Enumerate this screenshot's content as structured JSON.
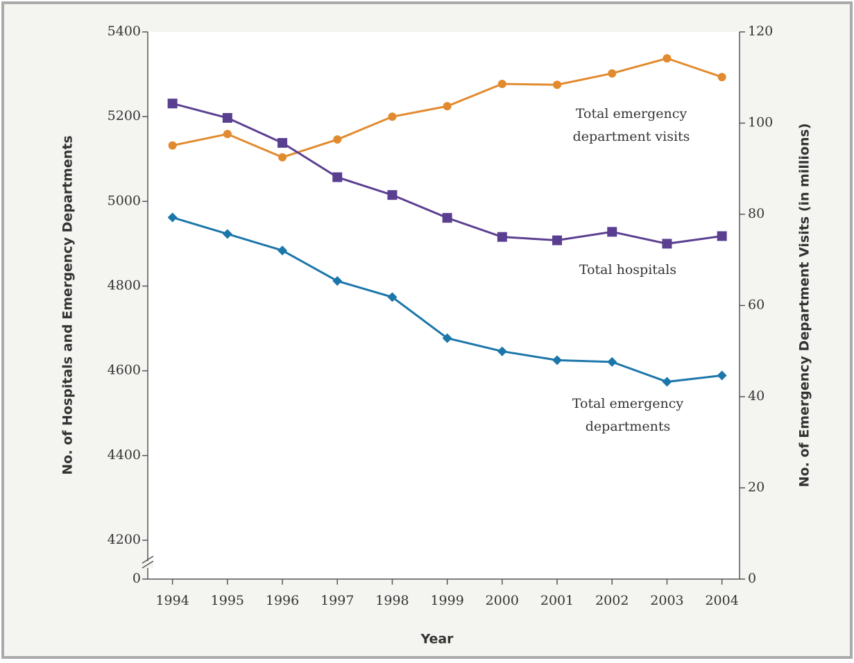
{
  "chart_data": {
    "type": "line",
    "xlabel": "Year",
    "ylabel": "No. of Hospitals and Emergency Departments",
    "y2label": "No. of Emergency Department Visits (in millions)",
    "x": [
      1994,
      1995,
      1996,
      1997,
      1998,
      1999,
      2000,
      2001,
      2002,
      2003,
      2004
    ],
    "xlim": [
      1993.55,
      2004.32
    ],
    "xticks": [
      1994,
      1995,
      1996,
      1997,
      1998,
      1999,
      2000,
      2001,
      2002,
      2003,
      2004
    ],
    "ylim": [
      0,
      5400
    ],
    "y_break": [
      0,
      4200
    ],
    "yticks": [
      0,
      4200,
      4400,
      4600,
      4800,
      5000,
      5200,
      5400
    ],
    "y2lim": [
      0,
      120
    ],
    "y2ticks": [
      0,
      20,
      40,
      60,
      80,
      100,
      120
    ],
    "series": [
      {
        "label_lines": [
          "Total emergency",
          "department visits"
        ],
        "color": "#e28a2e",
        "marker": "circle",
        "axis": "y2",
        "values": [
          95.1,
          97.6,
          92.5,
          96.4,
          101.4,
          103.7,
          108.6,
          108.4,
          110.9,
          114.2,
          110.1
        ]
      },
      {
        "label_lines": [
          "Total hospitals"
        ],
        "color": "#5a3f91",
        "marker": "square",
        "axis": "y",
        "values": [
          5231,
          5197,
          5138,
          5057,
          5015,
          4961,
          4916,
          4908,
          4928,
          4900,
          4918
        ]
      },
      {
        "label_lines": [
          "Total emergency",
          "departments"
        ],
        "color": "#1b76aa",
        "marker": "diamond",
        "axis": "y",
        "values": [
          4962,
          4923,
          4884,
          4812,
          4774,
          4677,
          4646,
          4625,
          4621,
          4574,
          4589
        ]
      }
    ]
  }
}
